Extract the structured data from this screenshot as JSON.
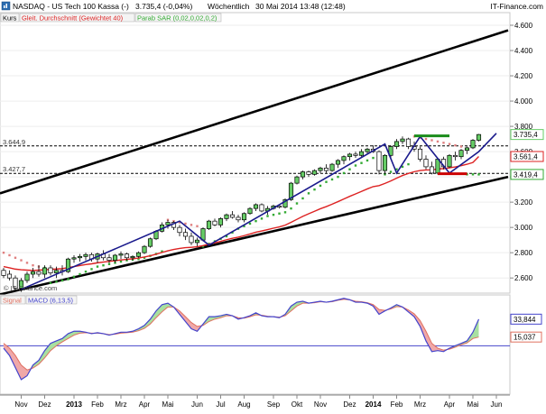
{
  "header": {
    "title": "NASDAQ - US Tech 100 Kassa (-)",
    "last": "3.735,4 (-0,04%)",
    "interval": "Wöchentlich",
    "datetime": "30 Mai 2014 13:48 (12:48)",
    "brand": "IT-Finance.com"
  },
  "legend": {
    "kurs": "Kurs",
    "ma": "Gleit. Durchschnitt (Gewichtet 40)",
    "parab": "Parab SAR (0,02,0,02,0,2)"
  },
  "watermark": "© IT-Finance.com",
  "colors": {
    "candle_up": "#66cc66",
    "candle_down": "#ffffff",
    "ma": "#dd2222",
    "sar": "#33aa33",
    "sar_red": "#e08080",
    "trend_channel": "#000000",
    "zigzag": "#1a1a8c",
    "green_bar": "#1a8c1a",
    "red_bar": "#cc0000",
    "macd": "#4444cc",
    "signal": "#e07060",
    "zero": "#4444cc"
  },
  "chart_data": [
    {
      "type": "candlestick",
      "title": "NASDAQ - US Tech 100 Kassa (-)",
      "frequency": "weekly",
      "ylim": [
        2480,
        4700
      ],
      "yticks": [
        2600,
        2800,
        3000,
        3200,
        3400,
        3600,
        3800,
        4000,
        4200,
        4400,
        4600
      ],
      "ytick_labels": [
        "2.600",
        "2.800",
        "3.000",
        "3.200",
        "3.400",
        "3.600",
        "3.800",
        "4.000",
        "4.200",
        "4.400",
        "4.600"
      ],
      "x_months": [
        {
          "label": "Nov",
          "week": 3,
          "bold": false
        },
        {
          "label": "Dez",
          "week": 7,
          "bold": false
        },
        {
          "label": "2013",
          "week": 12,
          "bold": true
        },
        {
          "label": "Feb",
          "week": 16,
          "bold": false
        },
        {
          "label": "Mrz",
          "week": 20,
          "bold": false
        },
        {
          "label": "Apr",
          "week": 24,
          "bold": false
        },
        {
          "label": "Mai",
          "week": 28,
          "bold": false
        },
        {
          "label": "Jun",
          "week": 33,
          "bold": false
        },
        {
          "label": "Jul",
          "week": 37,
          "bold": false
        },
        {
          "label": "Aug",
          "week": 41,
          "bold": false
        },
        {
          "label": "Sep",
          "week": 46,
          "bold": false
        },
        {
          "label": "Okt",
          "week": 50,
          "bold": false
        },
        {
          "label": "Nov",
          "week": 54,
          "bold": false
        },
        {
          "label": "Dez",
          "week": 59,
          "bold": false
        },
        {
          "label": "2014",
          "week": 63,
          "bold": true
        },
        {
          "label": "Feb",
          "week": 67,
          "bold": false
        },
        {
          "label": "Mrz",
          "week": 71,
          "bold": false
        },
        {
          "label": "Apr",
          "week": 76,
          "bold": false
        },
        {
          "label": "Mai",
          "week": 80,
          "bold": false
        },
        {
          "label": "Jun",
          "week": 84,
          "bold": false
        }
      ],
      "price_labels": [
        {
          "label": "3.735,4",
          "value": 3735.4,
          "color": "#66cc66"
        },
        {
          "label": "3.561,4",
          "value": 3561.4,
          "color": "#dd2222"
        },
        {
          "label": "3.419,4",
          "value": 3419.4,
          "color": "#33aa33"
        }
      ],
      "levels": [
        {
          "label": "3.644,9",
          "value": 3644.9
        },
        {
          "label": "3.427,7",
          "value": 3427.7
        }
      ],
      "candles": [
        [
          2660,
          2680,
          2600,
          2620
        ],
        [
          2630,
          2660,
          2580,
          2600
        ],
        [
          2600,
          2620,
          2500,
          2520
        ],
        [
          2520,
          2600,
          2490,
          2580
        ],
        [
          2580,
          2650,
          2560,
          2630
        ],
        [
          2630,
          2680,
          2600,
          2650
        ],
        [
          2650,
          2700,
          2610,
          2630
        ],
        [
          2630,
          2700,
          2600,
          2680
        ],
        [
          2680,
          2700,
          2620,
          2640
        ],
        [
          2640,
          2690,
          2600,
          2660
        ],
        [
          2660,
          2700,
          2620,
          2650
        ],
        [
          2650,
          2760,
          2640,
          2750
        ],
        [
          2750,
          2780,
          2720,
          2760
        ],
        [
          2760,
          2790,
          2730,
          2770
        ],
        [
          2770,
          2800,
          2740,
          2785
        ],
        [
          2785,
          2800,
          2730,
          2750
        ],
        [
          2750,
          2800,
          2720,
          2790
        ],
        [
          2790,
          2820,
          2740,
          2760
        ],
        [
          2760,
          2790,
          2720,
          2740
        ],
        [
          2740,
          2790,
          2720,
          2780
        ],
        [
          2780,
          2810,
          2750,
          2790
        ],
        [
          2790,
          2800,
          2740,
          2760
        ],
        [
          2760,
          2780,
          2740,
          2770
        ],
        [
          2770,
          2810,
          2760,
          2800
        ],
        [
          2800,
          2860,
          2790,
          2850
        ],
        [
          2850,
          2920,
          2840,
          2910
        ],
        [
          2910,
          2980,
          2900,
          2970
        ],
        [
          2970,
          3040,
          2960,
          3020
        ],
        [
          3020,
          3060,
          2990,
          3040
        ],
        [
          3040,
          3050,
          2980,
          3000
        ],
        [
          3000,
          3020,
          2930,
          2960
        ],
        [
          2960,
          2990,
          2900,
          2930
        ],
        [
          2930,
          2960,
          2860,
          2880
        ],
        [
          2880,
          2920,
          2850,
          2900
        ],
        [
          2900,
          3000,
          2890,
          2990
        ],
        [
          2990,
          3060,
          2980,
          3050
        ],
        [
          3050,
          3070,
          3010,
          3020
        ],
        [
          3020,
          3080,
          3000,
          3070
        ],
        [
          3070,
          3110,
          3050,
          3100
        ],
        [
          3100,
          3130,
          3070,
          3080
        ],
        [
          3080,
          3100,
          3040,
          3060
        ],
        [
          3060,
          3120,
          3040,
          3110
        ],
        [
          3110,
          3160,
          3100,
          3150
        ],
        [
          3150,
          3190,
          3130,
          3180
        ],
        [
          3180,
          3190,
          3120,
          3130
        ],
        [
          3130,
          3170,
          3100,
          3150
        ],
        [
          3150,
          3180,
          3140,
          3170
        ],
        [
          3170,
          3175,
          3150,
          3160
        ],
        [
          3160,
          3230,
          3150,
          3220
        ],
        [
          3220,
          3360,
          3210,
          3350
        ],
        [
          3350,
          3410,
          3340,
          3400
        ],
        [
          3400,
          3450,
          3380,
          3440
        ],
        [
          3440,
          3450,
          3400,
          3420
        ],
        [
          3420,
          3460,
          3410,
          3450
        ],
        [
          3450,
          3480,
          3430,
          3470
        ],
        [
          3470,
          3500,
          3430,
          3450
        ],
        [
          3450,
          3510,
          3440,
          3500
        ],
        [
          3500,
          3540,
          3470,
          3530
        ],
        [
          3530,
          3570,
          3500,
          3560
        ],
        [
          3560,
          3590,
          3530,
          3580
        ],
        [
          3580,
          3600,
          3550,
          3570
        ],
        [
          3570,
          3620,
          3560,
          3600
        ],
        [
          3600,
          3630,
          3580,
          3620
        ],
        [
          3620,
          3650,
          3590,
          3600
        ],
        [
          3600,
          3610,
          3420,
          3450
        ],
        [
          3450,
          3580,
          3420,
          3570
        ],
        [
          3570,
          3650,
          3550,
          3640
        ],
        [
          3640,
          3700,
          3620,
          3680
        ],
        [
          3680,
          3720,
          3660,
          3700
        ],
        [
          3700,
          3710,
          3620,
          3640
        ],
        [
          3640,
          3680,
          3600,
          3620
        ],
        [
          3620,
          3640,
          3520,
          3540
        ],
        [
          3540,
          3570,
          3460,
          3480
        ],
        [
          3480,
          3520,
          3420,
          3430
        ],
        [
          3430,
          3550,
          3420,
          3540
        ],
        [
          3540,
          3560,
          3460,
          3480
        ],
        [
          3480,
          3580,
          3470,
          3570
        ],
        [
          3570,
          3600,
          3530,
          3560
        ],
        [
          3560,
          3620,
          3540,
          3610
        ],
        [
          3610,
          3640,
          3580,
          3630
        ],
        [
          3630,
          3700,
          3620,
          3690
        ],
        [
          3690,
          3740,
          3680,
          3735.4
        ]
      ],
      "ma_series": [
        2690,
        2680,
        2670,
        2665,
        2662,
        2660,
        2662,
        2665,
        2668,
        2671,
        2674,
        2682,
        2690,
        2698,
        2706,
        2712,
        2720,
        2726,
        2731,
        2737,
        2743,
        2747,
        2752,
        2758,
        2766,
        2776,
        2788,
        2802,
        2815,
        2826,
        2834,
        2840,
        2843,
        2847,
        2856,
        2868,
        2878,
        2890,
        2903,
        2914,
        2923,
        2935,
        2948,
        2962,
        2972,
        2983,
        2994,
        3004,
        3018,
        3040,
        3064,
        3088,
        3108,
        3128,
        3148,
        3165,
        3184,
        3204,
        3225,
        3246,
        3265,
        3285,
        3305,
        3323,
        3331,
        3348,
        3368,
        3390,
        3411,
        3427,
        3441,
        3450,
        3455,
        3456,
        3463,
        3465,
        3472,
        3479,
        3489,
        3500,
        3514,
        3561.4
      ],
      "sar_series": [
        2800,
        2780,
        2760,
        2740,
        2720,
        2700,
        2690,
        2680,
        2560,
        2570,
        2580,
        2590,
        2610,
        2630,
        2650,
        2670,
        2690,
        2700,
        2710,
        2720,
        2730,
        2740,
        2745,
        2750,
        2760,
        2775,
        2790,
        2810,
        3060,
        3050,
        3040,
        3030,
        3020,
        3010,
        2850,
        2870,
        2890,
        2910,
        2930,
        2960,
        2990,
        3010,
        3030,
        3050,
        3070,
        3090,
        3100,
        3110,
        3120,
        3150,
        3190,
        3230,
        3270,
        3300,
        3330,
        3360,
        3380,
        3400,
        3430,
        3460,
        3490,
        3510,
        3530,
        3550,
        3570,
        3420,
        3440,
        3460,
        3480,
        3500,
        3720,
        3710,
        3700,
        3690,
        3680,
        3670,
        3660,
        3650,
        3640,
        3420,
        3420,
        3419.4
      ],
      "annotations": {
        "channel_upper": [
          [
            0,
            3270
          ],
          [
            86,
            4560
          ]
        ],
        "channel_lower": [
          [
            0,
            2470
          ],
          [
            86,
            3400
          ]
        ],
        "zigzag": [
          [
            3,
            2510
          ],
          [
            30,
            3050
          ],
          [
            35,
            2860
          ],
          [
            65,
            3660
          ],
          [
            67,
            3430
          ],
          [
            71,
            3720
          ],
          [
            76,
            3430
          ],
          [
            81,
            3600
          ],
          [
            84,
            3745
          ]
        ],
        "green_bar": {
          "x": [
            70,
            76
          ],
          "value": 3725
        },
        "red_bar": {
          "x": [
            74,
            79
          ],
          "value": 3425
        }
      }
    },
    {
      "type": "line",
      "series_labels": {
        "signal": "Signal",
        "macd": "MACD (6,13,5)"
      },
      "ylim": [
        -1,
        1.05
      ],
      "zero": 0,
      "price_labels": [
        {
          "label": "33,844",
          "value": 0.55,
          "color": "#4444cc"
        },
        {
          "label": "15,037",
          "value": 0.18,
          "color": "#e07060"
        }
      ],
      "macd": [
        -0.05,
        -0.2,
        -0.45,
        -0.7,
        -0.62,
        -0.4,
        -0.3,
        -0.1,
        0.05,
        0.1,
        0.15,
        0.25,
        0.3,
        0.3,
        0.28,
        0.25,
        0.27,
        0.25,
        0.22,
        0.25,
        0.28,
        0.28,
        0.3,
        0.35,
        0.42,
        0.55,
        0.72,
        0.85,
        0.88,
        0.8,
        0.65,
        0.5,
        0.35,
        0.3,
        0.45,
        0.6,
        0.6,
        0.62,
        0.65,
        0.62,
        0.55,
        0.58,
        0.62,
        0.68,
        0.62,
        0.6,
        0.6,
        0.58,
        0.65,
        0.82,
        0.9,
        0.92,
        0.88,
        0.9,
        0.92,
        0.9,
        0.92,
        0.95,
        0.98,
        0.95,
        0.9,
        0.9,
        0.88,
        0.82,
        0.65,
        0.72,
        0.78,
        0.85,
        0.8,
        0.7,
        0.6,
        0.4,
        0.1,
        -0.12,
        -0.1,
        -0.12,
        -0.05,
        0.0,
        0.05,
        0.1,
        0.28,
        0.55
      ],
      "signal": [
        0.05,
        -0.05,
        -0.2,
        -0.4,
        -0.5,
        -0.46,
        -0.38,
        -0.25,
        -0.1,
        0.0,
        0.08,
        0.15,
        0.22,
        0.26,
        0.27,
        0.26,
        0.26,
        0.25,
        0.23,
        0.24,
        0.26,
        0.27,
        0.28,
        0.31,
        0.36,
        0.45,
        0.58,
        0.7,
        0.8,
        0.8,
        0.72,
        0.6,
        0.48,
        0.4,
        0.42,
        0.5,
        0.55,
        0.58,
        0.62,
        0.62,
        0.58,
        0.57,
        0.6,
        0.64,
        0.63,
        0.61,
        0.6,
        0.59,
        0.62,
        0.72,
        0.82,
        0.88,
        0.88,
        0.89,
        0.91,
        0.9,
        0.91,
        0.94,
        0.96,
        0.95,
        0.92,
        0.91,
        0.89,
        0.85,
        0.75,
        0.73,
        0.76,
        0.81,
        0.8,
        0.74,
        0.66,
        0.52,
        0.3,
        0.05,
        -0.05,
        -0.09,
        -0.07,
        -0.03,
        0.02,
        0.06,
        0.15,
        0.18
      ]
    }
  ]
}
